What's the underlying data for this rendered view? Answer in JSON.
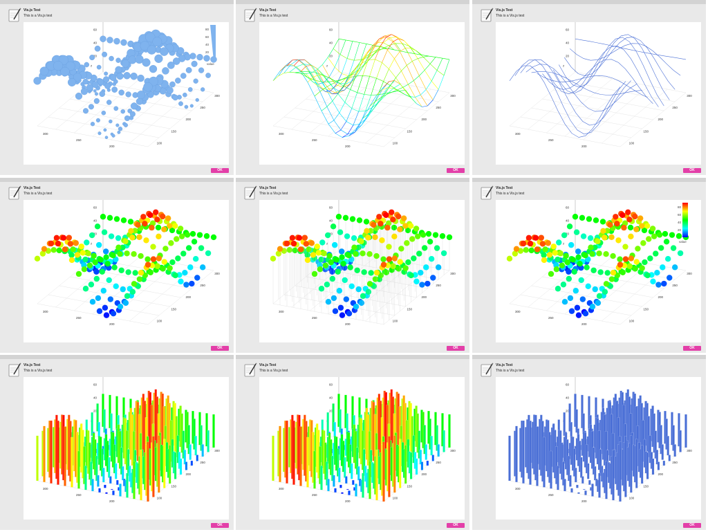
{
  "app": {
    "title": "Vis.js Test",
    "subtitle": "This is a Vis.js test",
    "ok_label": "OK"
  },
  "icons": {
    "app_icon": "notepad-pen-icon"
  },
  "axes": {
    "z_ticks": [
      "80",
      "60",
      "40",
      "20"
    ],
    "z_label": "z",
    "x_ticks": [
      "300",
      "250",
      "200"
    ],
    "y_ticks": [
      "300",
      "250",
      "200",
      "150",
      "100"
    ]
  },
  "legend": {
    "ticks": [
      "80",
      "60",
      "40",
      "20"
    ],
    "label": "value"
  },
  "colors": {
    "panel_bg": "#e9e9e9",
    "button": "#e33fa8",
    "uniform_blue": "#7fb3ee",
    "line_blue": "#4a6fd6"
  },
  "panels": [
    {
      "style": "dot-size",
      "color_mode": "uniform",
      "legend": "size"
    },
    {
      "style": "grid",
      "color_mode": "spectrum",
      "legend": "none"
    },
    {
      "style": "line",
      "color_mode": "uniform",
      "legend": "none"
    },
    {
      "style": "dot-color",
      "color_mode": "spectrum",
      "legend": "none"
    },
    {
      "style": "dot-line",
      "color_mode": "spectrum",
      "legend": "none"
    },
    {
      "style": "dot-color",
      "color_mode": "spectrum",
      "legend": "color"
    },
    {
      "style": "bar-color",
      "color_mode": "spectrum",
      "legend": "none"
    },
    {
      "style": "bar-color",
      "color_mode": "spectrum",
      "legend": "none"
    },
    {
      "style": "bar",
      "color_mode": "uniform",
      "legend": "none"
    }
  ]
}
